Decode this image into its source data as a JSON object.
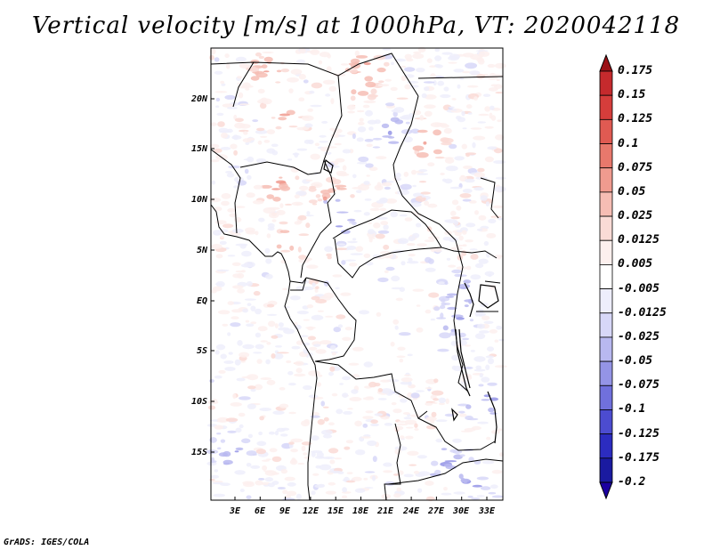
{
  "title": "Vertical velocity [m/s] at 1000hPa, VT: 2020042118",
  "credit": "GrADS: IGES/COLA",
  "map": {
    "lat_ticks": [
      "20N",
      "15N",
      "10N",
      "5N",
      "EQ",
      "5S",
      "10S",
      "15S"
    ],
    "lon_ticks": [
      "3E",
      "6E",
      "9E",
      "12E",
      "15E",
      "18E",
      "21E",
      "24E",
      "27E",
      "30E",
      "33E"
    ]
  },
  "colorbar": {
    "labels": [
      "0.175",
      "0.15",
      "0.125",
      "0.1",
      "0.075",
      "0.05",
      "0.025",
      "0.0125",
      "0.005",
      "-0.005",
      "-0.0125",
      "-0.025",
      "-0.05",
      "-0.075",
      "-0.1",
      "-0.125",
      "-0.175",
      "-0.2"
    ],
    "colors": [
      "#b21e23",
      "#c52a2d",
      "#d53d3b",
      "#e05a52",
      "#e8786c",
      "#f09b8f",
      "#f6bdb4",
      "#fadbd6",
      "#fdf0ee",
      "#ffffff",
      "#eeeefc",
      "#d7d7f8",
      "#b8b8f0",
      "#9494e6",
      "#7070dc",
      "#4c4cd0",
      "#2c2cc0",
      "#1a1aa0"
    ],
    "top_color": "#9b1116",
    "bottom_color": "#1b00a0"
  }
}
